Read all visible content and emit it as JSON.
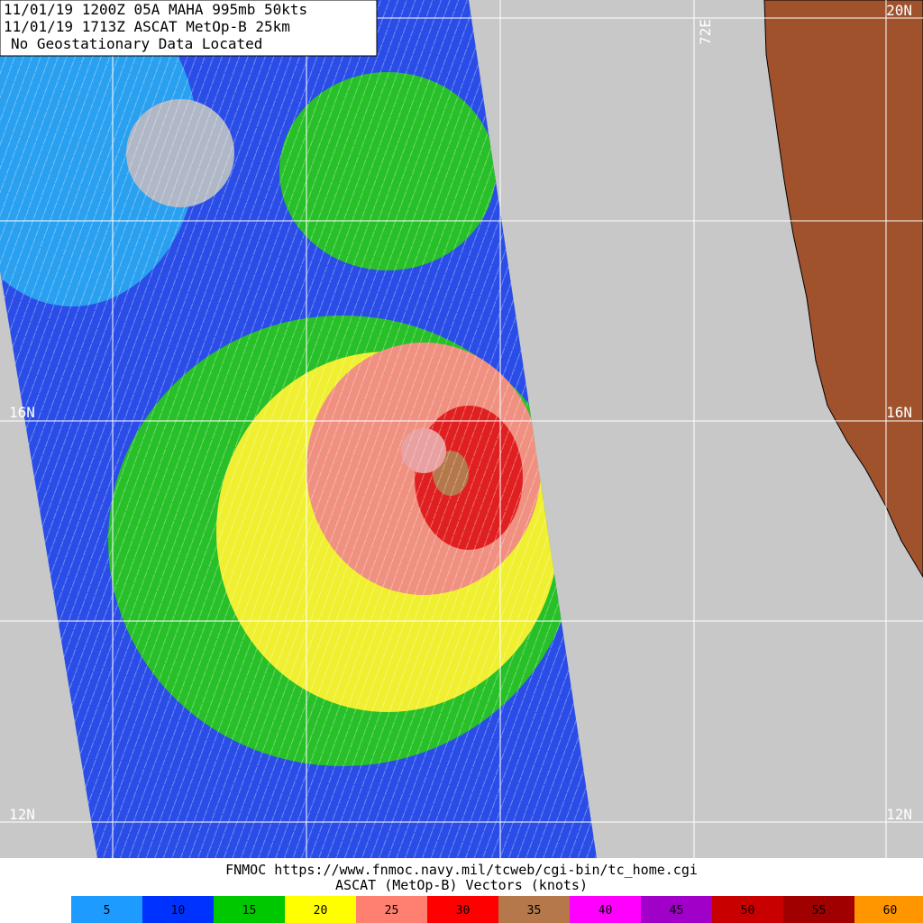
{
  "header": {
    "lines": [
      "11/01/19 1200Z  05A MAHA 995mb 50kts",
      "11/01/19 1713Z  ASCAT MetOp-B 25km",
      "No Geostationary Data Located"
    ]
  },
  "map": {
    "lat_labels": [
      "20N",
      "16N",
      "16N",
      "12N",
      "12N"
    ],
    "lon_labels": [
      "72E"
    ]
  },
  "footer": {
    "lines": [
      "FNMOC https://www.fnmoc.navy.mil/tcweb/cgi-bin/tc_home.cgi",
      "ASCAT (MetOp-B) Vectors (knots)"
    ]
  },
  "legend": {
    "items": [
      {
        "value": 5,
        "color": "#1e9bff"
      },
      {
        "value": 10,
        "color": "#0032ff"
      },
      {
        "value": 15,
        "color": "#00c800"
      },
      {
        "value": 20,
        "color": "#ffff00"
      },
      {
        "value": 25,
        "color": "#ff8070"
      },
      {
        "value": 30,
        "color": "#ff0000"
      },
      {
        "value": 35,
        "color": "#b4784a"
      },
      {
        "value": 40,
        "color": "#ff00ff"
      },
      {
        "value": 45,
        "color": "#a000c8"
      },
      {
        "value": 50,
        "color": "#c80000"
      },
      {
        "value": 55,
        "color": "#a00000"
      },
      {
        "value": 60,
        "color": "#ff9600"
      }
    ]
  }
}
